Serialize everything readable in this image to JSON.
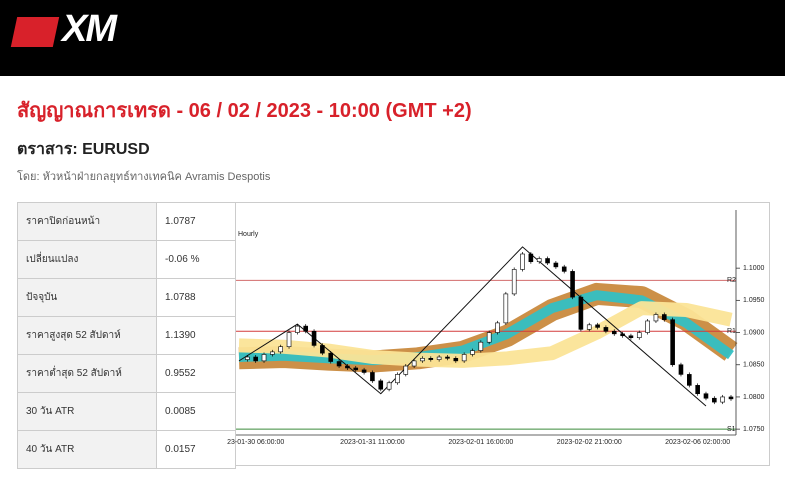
{
  "header": {
    "logo": "XM"
  },
  "title": "สัญญาณการเทรด - 06 / 02 / 2023 - 10:00 (GMT +2)",
  "instrument": "ตราสาร: EURUSD",
  "author": "โดย: หัวหน้าฝ่ายกลยุทธ์ทางเทคนิค Avramis Despotis",
  "table": {
    "rows": [
      [
        "ราคาปิดก่อนหน้า",
        "1.0787"
      ],
      [
        "เปลี่ยนแปลง",
        "-0.06 %"
      ],
      [
        "ปัจจุบัน",
        "1.0788"
      ],
      [
        "ราคาสูงสุด 52 สัปดาห์",
        "1.1390"
      ],
      [
        "ราคาต่ำสุด 52 สัปดาห์",
        "0.9552"
      ],
      [
        "30 วัน ATR",
        "0.0085"
      ],
      [
        "40 วัน ATR",
        "0.0157"
      ]
    ]
  },
  "chart_data": {
    "type": "candlestick",
    "title": "Hourly",
    "categories": [
      null,
      null,
      "23-01-30 06:00:00",
      null,
      null,
      null,
      null,
      null,
      null,
      null,
      null,
      null,
      null,
      null,
      null,
      null,
      "2023-01-31 11:00:00",
      null,
      null,
      null,
      null,
      null,
      null,
      null,
      null,
      null,
      null,
      null,
      null,
      "2023-02-01 16:00:00",
      null,
      null,
      null,
      null,
      null,
      null,
      null,
      null,
      null,
      null,
      null,
      null,
      "2023-02-02 21:00:00",
      null,
      null,
      null,
      null,
      null,
      null,
      null,
      null,
      null,
      null,
      null,
      null,
      "2023-02-06 02:00:00",
      null,
      null,
      null,
      null
    ],
    "values": [
      1.0858,
      1.0862,
      1.0856,
      1.0866,
      1.087,
      1.0878,
      1.09,
      1.091,
      1.0902,
      1.088,
      1.0868,
      1.0855,
      1.0848,
      1.0845,
      1.0842,
      1.0838,
      1.0825,
      1.0812,
      1.0822,
      1.0835,
      1.0848,
      1.0856,
      1.086,
      1.0858,
      1.0862,
      1.086,
      1.0856,
      1.0866,
      1.0872,
      1.0885,
      1.09,
      1.0915,
      1.096,
      1.0998,
      1.1022,
      1.101,
      1.1015,
      1.1008,
      1.1002,
      1.0995,
      1.0955,
      1.0905,
      1.0912,
      1.0908,
      1.0902,
      1.0898,
      1.0895,
      1.0892,
      1.09,
      1.0918,
      1.0928,
      1.092,
      1.085,
      1.0835,
      1.0818,
      1.0805,
      1.0798,
      1.0792,
      1.08,
      1.0797
    ],
    "zigzag": {
      "x": [
        0,
        7,
        17,
        34,
        56
      ],
      "values": [
        1.0856,
        1.0913,
        1.0805,
        1.1033,
        1.0786
      ]
    },
    "bands": [
      {
        "color": "#c98a3e",
        "values": [
          1.086,
          1.0862,
          1.0858,
          1.0855,
          1.086,
          1.087,
          1.0895,
          1.0935,
          1.096,
          1.0955,
          1.092,
          1.087
        ]
      },
      {
        "color": "#33c0c4",
        "values": [
          1.0862,
          1.0864,
          1.086,
          1.0857,
          1.0862,
          1.0872,
          1.0898,
          1.0938,
          1.0958,
          1.095,
          1.0915,
          1.0865
        ]
      },
      {
        "color": "#fbe497",
        "values": [
          1.088,
          1.0878,
          1.0872,
          1.0862,
          1.0858,
          1.0856,
          1.086,
          1.0868,
          1.09,
          1.0938,
          1.0935,
          1.092
        ]
      }
    ],
    "levels": [
      {
        "name": "R2",
        "value": 1.0981,
        "color": "#d36b6b"
      },
      {
        "name": "R1",
        "value": 1.0902,
        "color": "#d33b3b"
      },
      {
        "name": "S1",
        "value": 1.075,
        "color": "#3a8a3a"
      }
    ],
    "ylim": [
      1.0744,
      1.1081
    ],
    "yticks": [
      {
        "value": 1.075,
        "label": "1.0750"
      },
      {
        "value": 1.08,
        "label": "1.0800"
      },
      {
        "value": 1.085,
        "label": "1.0850"
      },
      {
        "value": 1.09,
        "label": "1.0900"
      },
      {
        "value": 1.095,
        "label": "1.0950"
      },
      {
        "value": 1.1,
        "label": "1.1000"
      }
    ]
  }
}
